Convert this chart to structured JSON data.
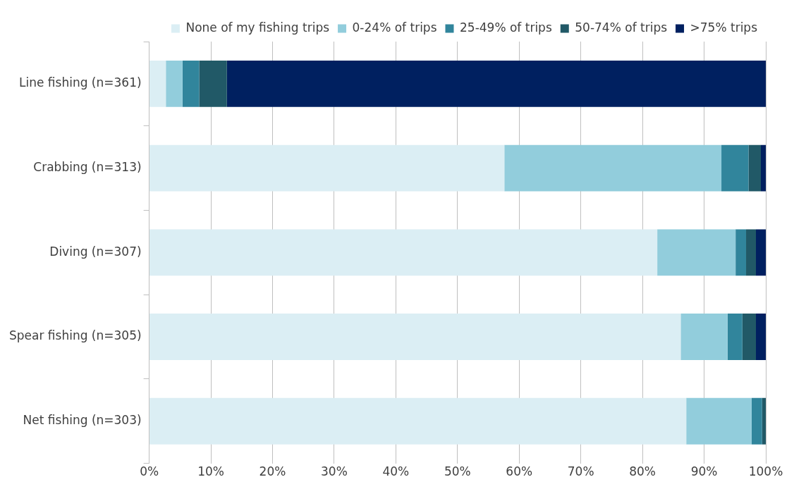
{
  "chart_data": {
    "type": "bar",
    "orientation": "horizontal",
    "stacked": true,
    "categories": [
      "Line fishing (n=361)",
      "Crabbing (n=313)",
      "Diving (n=307)",
      "Spear fishing (n=305)",
      "Net fishing (n=303)"
    ],
    "series": [
      {
        "name": "None of my fishing trips",
        "color": "#dbeef4",
        "values": [
          2.7,
          57.6,
          82.4,
          86.2,
          87.1
        ]
      },
      {
        "name": "0-24% of trips",
        "color": "#92cddc",
        "values": [
          2.7,
          35.2,
          12.7,
          7.6,
          10.6
        ]
      },
      {
        "name": "25-49% of trips",
        "color": "#31859c",
        "values": [
          2.7,
          4.4,
          1.7,
          2.4,
          1.7
        ]
      },
      {
        "name": "50-74% of trips",
        "color": "#215967",
        "values": [
          4.5,
          2.0,
          1.6,
          2.2,
          0.6
        ]
      },
      {
        "name": ">75% trips",
        "color": "#002060",
        "values": [
          87.4,
          0.8,
          1.6,
          1.6,
          0
        ]
      }
    ],
    "xlim": [
      0,
      100
    ],
    "xticks": [
      {
        "value": 0,
        "label": "0%"
      },
      {
        "value": 10,
        "label": "10%"
      },
      {
        "value": 20,
        "label": "20%"
      },
      {
        "value": 30,
        "label": "30%"
      },
      {
        "value": 40,
        "label": "40%"
      },
      {
        "value": 50,
        "label": "50%"
      },
      {
        "value": 60,
        "label": "60%"
      },
      {
        "value": 70,
        "label": "70%"
      },
      {
        "value": 80,
        "label": "80%"
      },
      {
        "value": 90,
        "label": "90%"
      },
      {
        "value": 100,
        "label": "100%"
      }
    ],
    "grid": "x",
    "legend": "top"
  }
}
